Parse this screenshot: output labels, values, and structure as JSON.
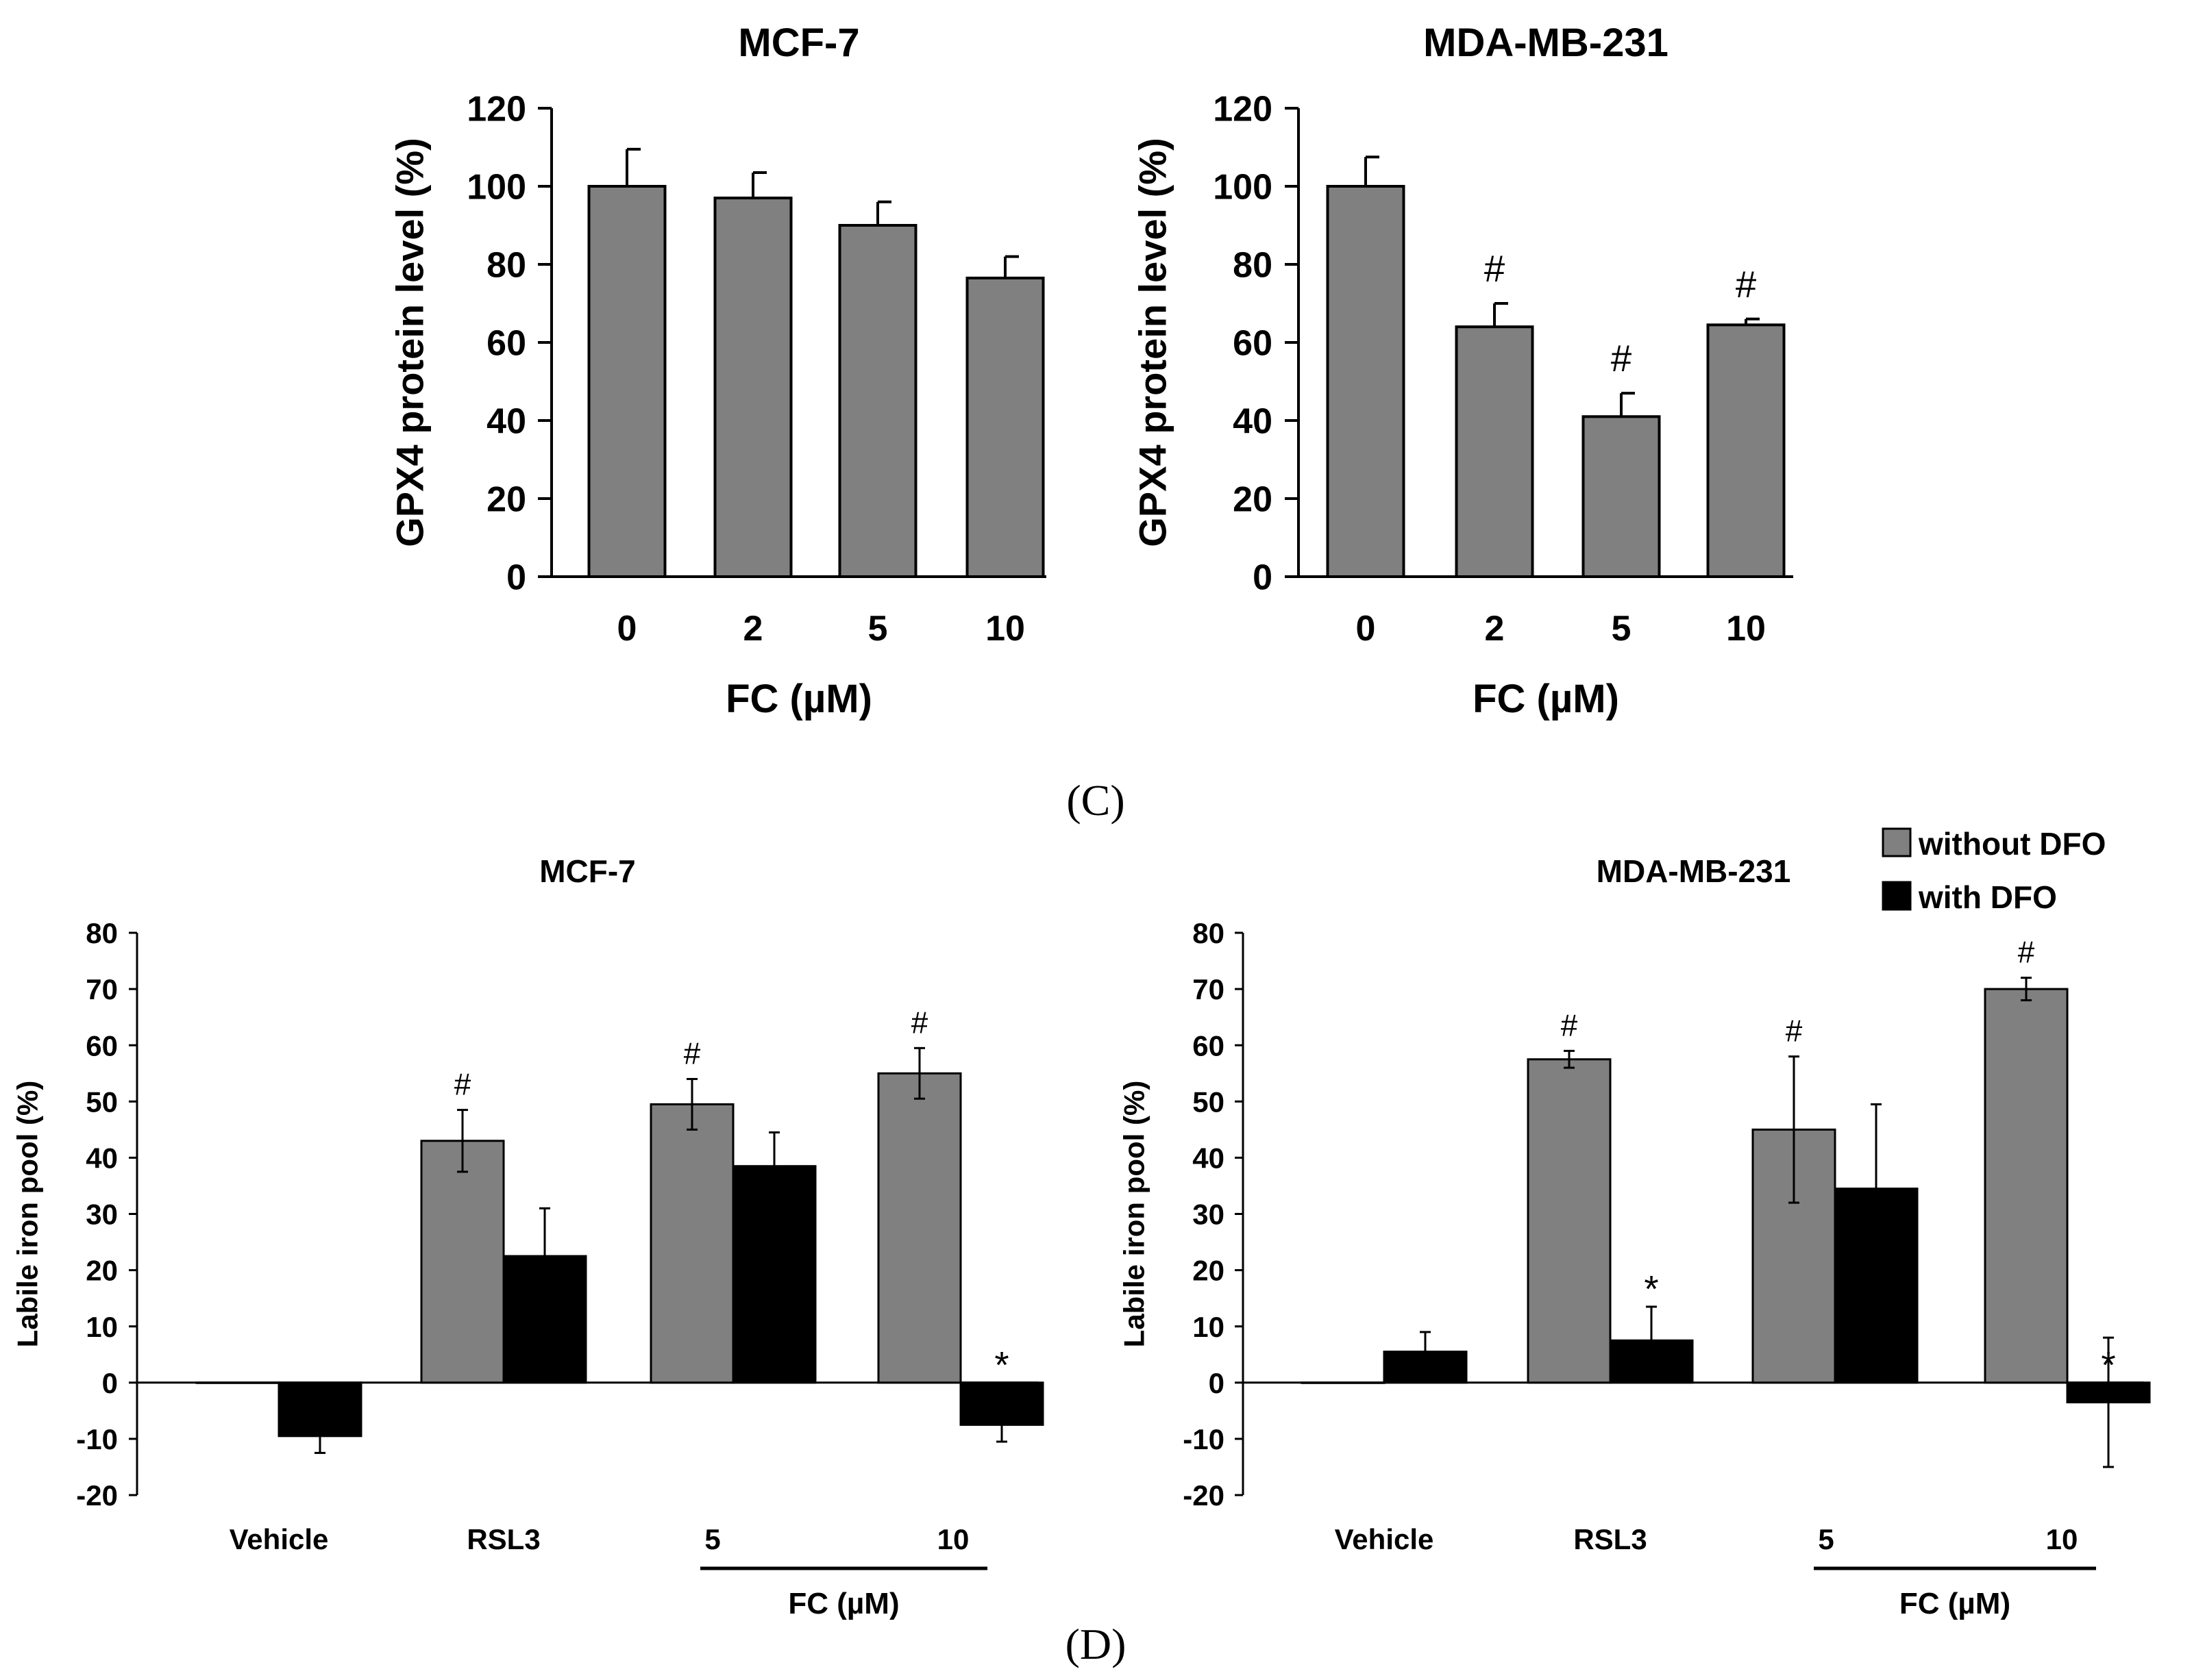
{
  "colors": {
    "without": "#808080",
    "with": "#000000",
    "axis": "#000000"
  },
  "panel_labels": {
    "c": "(C)",
    "d": "(D)"
  },
  "chart_data": [
    {
      "id": "c1",
      "type": "bar",
      "title": "MCF-7",
      "ylabel": "GPX4 protein level (%)",
      "xlabel": "FC (µM)",
      "ylim": [
        0,
        120
      ],
      "yticks": [
        0,
        20,
        40,
        60,
        80,
        100,
        120
      ],
      "categories": [
        "0",
        "2",
        "5",
        "10"
      ],
      "series": [
        {
          "name": "GPX4",
          "values": [
            100,
            97,
            90,
            76.5
          ],
          "errors": [
            9.5,
            6.5,
            6,
            5.5
          ],
          "annotations": [
            "",
            "",
            "",
            ""
          ]
        }
      ]
    },
    {
      "id": "c2",
      "type": "bar",
      "title": "MDA-MB-231",
      "ylabel": "GPX4 protein level (%)",
      "xlabel": "FC (µM)",
      "ylim": [
        0,
        120
      ],
      "yticks": [
        0,
        20,
        40,
        60,
        80,
        100,
        120
      ],
      "categories": [
        "0",
        "2",
        "5",
        "10"
      ],
      "series": [
        {
          "name": "GPX4",
          "values": [
            100,
            64,
            41,
            64.5
          ],
          "errors": [
            7.5,
            6,
            6,
            1.5
          ],
          "annotations": [
            "",
            "#",
            "#",
            "#"
          ]
        }
      ]
    },
    {
      "id": "d1",
      "type": "bar",
      "title": "MCF-7",
      "ylabel": "Labile iron pool (%)",
      "xlabel": "FC (µM)",
      "ylim": [
        -20,
        80
      ],
      "yticks": [
        -20,
        -10,
        0,
        10,
        20,
        30,
        40,
        50,
        60,
        70,
        80
      ],
      "categories": [
        "Vehicle",
        "RSL3",
        "5",
        "10"
      ],
      "fc_bracket_categories": [
        "5",
        "10"
      ],
      "series": [
        {
          "name": "without DFO",
          "values": [
            0,
            43,
            49.5,
            55
          ],
          "errors": [
            0,
            5.5,
            4.5,
            4.5
          ],
          "annotations": [
            "",
            "#",
            "#",
            "#"
          ]
        },
        {
          "name": "with DFO",
          "values": [
            -9.5,
            22.5,
            38.5,
            -7.5
          ],
          "errors": [
            3,
            8.5,
            6,
            3
          ],
          "annotations": [
            "",
            "",
            "",
            "*"
          ]
        }
      ]
    },
    {
      "id": "d2",
      "type": "bar",
      "title": "MDA-MB-231",
      "ylabel": "Labile iron pool (%)",
      "xlabel": "FC (µM)",
      "ylim": [
        -20,
        80
      ],
      "yticks": [
        -20,
        -10,
        0,
        10,
        20,
        30,
        40,
        50,
        60,
        70,
        80
      ],
      "categories": [
        "Vehicle",
        "RSL3",
        "5",
        "10"
      ],
      "fc_bracket_categories": [
        "5",
        "10"
      ],
      "legend": {
        "position": "top-right",
        "entries": [
          "without DFO",
          "with DFO"
        ]
      },
      "series": [
        {
          "name": "without DFO",
          "values": [
            0,
            57.5,
            45,
            70
          ],
          "errors": [
            0,
            1.5,
            13,
            2
          ],
          "annotations": [
            "",
            "#",
            "#",
            "#"
          ]
        },
        {
          "name": "with DFO",
          "values": [
            5.5,
            7.5,
            34.5,
            -3.5
          ],
          "errors": [
            3.5,
            6,
            15,
            11.5
          ],
          "annotations": [
            "",
            "*",
            "",
            "*"
          ]
        }
      ]
    }
  ]
}
